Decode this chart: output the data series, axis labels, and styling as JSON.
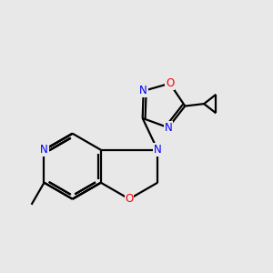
{
  "bg_color": "#e8e8e8",
  "bond_color": "#000000",
  "n_color": "#0000ff",
  "o_color": "#ff0000",
  "line_width": 1.6,
  "figsize": [
    3.0,
    3.0
  ],
  "dpi": 100,
  "xlim": [
    0,
    10
  ],
  "ylim": [
    0,
    10
  ]
}
